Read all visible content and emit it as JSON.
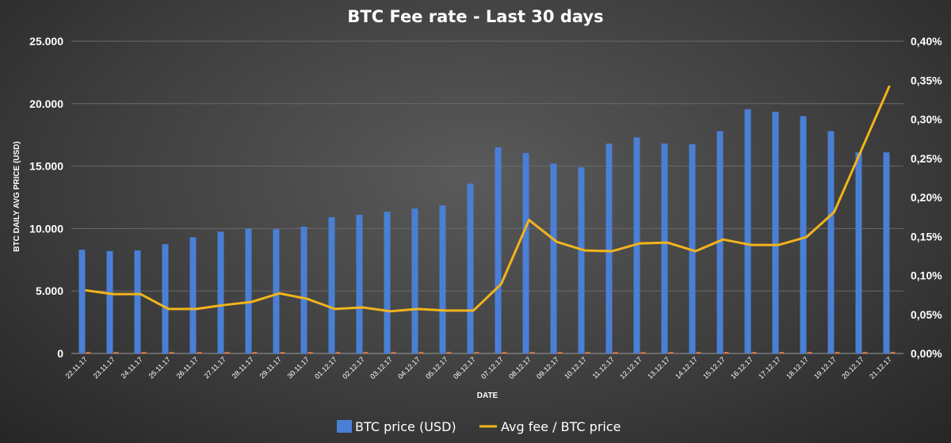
{
  "chart_data": {
    "type": "bar",
    "title": "BTC Fee rate - Last 30 days",
    "xlabel": "DATE",
    "ylabel": "BTC DAILY AVG PRICE (USD)",
    "categories": [
      "22.11.17",
      "23.11.17",
      "24.11.17",
      "25.11.17",
      "26.11.17",
      "27.11.17",
      "28.11.17",
      "29.11.17",
      "30.11.17",
      "01.12.17",
      "02.12.17",
      "03.12.17",
      "04.12.17",
      "05.12.17",
      "06.12.17",
      "07.12.17",
      "08.12.17",
      "09.12.17",
      "10.12.17",
      "11.12.17",
      "12.12.17",
      "13.12.17",
      "14.12.17",
      "15.12.17",
      "16.12.17",
      "17.12.17",
      "18.12.17",
      "19.12.17",
      "20.12.17",
      "21.12.17"
    ],
    "series": [
      {
        "name": "BTC price (USD)",
        "type": "bar",
        "axis": "left",
        "color": "#4a7fd6",
        "values": [
          8300,
          8200,
          8250,
          8750,
          9300,
          9750,
          10000,
          9950,
          10150,
          10900,
          11100,
          11350,
          11600,
          11850,
          13600,
          16500,
          16050,
          15200,
          14900,
          16800,
          17300,
          16800,
          16750,
          17800,
          19550,
          19350,
          19000,
          17800,
          16100,
          16100
        ]
      },
      {
        "name": "Avg fee / BTC price",
        "type": "line",
        "axis": "right",
        "color": "#f2b41c",
        "values": [
          0.00081,
          0.00076,
          0.00076,
          0.00057,
          0.00057,
          0.00062,
          0.00066,
          0.00077,
          0.0007,
          0.00057,
          0.00059,
          0.00054,
          0.00057,
          0.00055,
          0.00055,
          0.00089,
          0.00171,
          0.00143,
          0.00132,
          0.00131,
          0.00141,
          0.00142,
          0.00131,
          0.00146,
          0.00139,
          0.00139,
          0.00149,
          0.00181,
          0.00262,
          0.00343
        ]
      }
    ],
    "ylim": [
      0,
      25000
    ],
    "y_ticks": [
      "0",
      "5.000",
      "10.000",
      "15.000",
      "20.000",
      "25.000"
    ],
    "y2lim": [
      0,
      0.004
    ],
    "y2_ticks": [
      "0,00%",
      "0,05%",
      "0,10%",
      "0,15%",
      "0,20%",
      "0,25%",
      "0,30%",
      "0,35%",
      "0,40%"
    ],
    "grid": true,
    "legend_position": "bottom"
  }
}
